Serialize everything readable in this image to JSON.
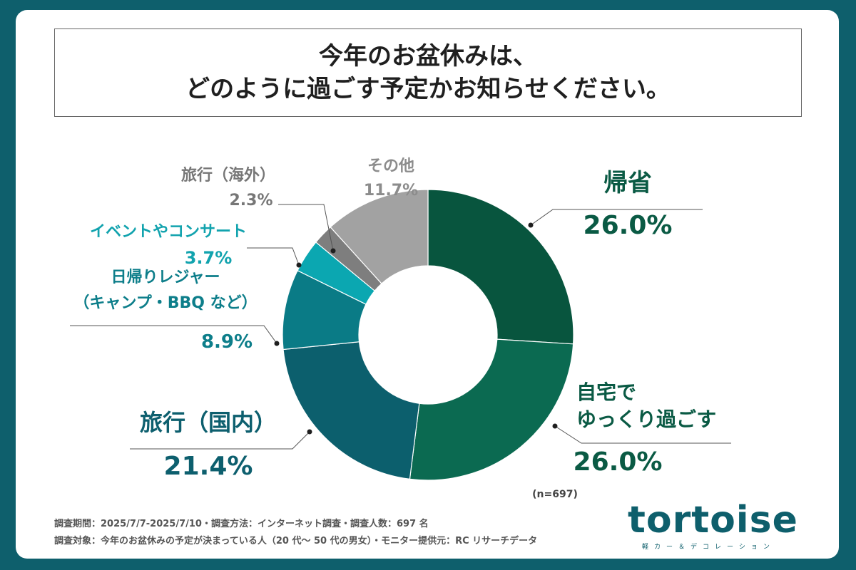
{
  "title": {
    "line1": "今年のお盆休みは、",
    "line2": "どのように過ごす予定かお知らせください。"
  },
  "chart_data": {
    "type": "pie",
    "variant": "donut",
    "title": "今年のお盆休みは、どのように過ごす予定かお知らせください。",
    "unit": "%",
    "n_label": "(n=697)",
    "slices": [
      {
        "label": [
          "帰省"
        ],
        "value": 26.0,
        "value_label": "26.0%",
        "color": "#08553e"
      },
      {
        "label": [
          "自宅で",
          "ゆっくり過ごす"
        ],
        "value": 26.0,
        "value_label": "26.0%",
        "color": "#0b6a51"
      },
      {
        "label": [
          "旅行（国内）"
        ],
        "value": 21.4,
        "value_label": "21.4%",
        "color": "#0c5f6d"
      },
      {
        "label": [
          "日帰りレジャー",
          "（キャンプ・BBQ など）"
        ],
        "value": 8.9,
        "value_label": "8.9%",
        "color": "#0a7b86"
      },
      {
        "label": [
          "イベントやコンサート"
        ],
        "value": 3.7,
        "value_label": "3.7%",
        "color": "#0ba7b1"
      },
      {
        "label": [
          "旅行（海外）"
        ],
        "value": 2.3,
        "value_label": "2.3%",
        "color": "#7e7e7e"
      },
      {
        "label": [
          "その他"
        ],
        "value": 11.7,
        "value_label": "11.7%",
        "color": "#a2a2a2"
      }
    ],
    "label_colors": {
      "帰省": "#0a5a44",
      "自宅で ゆっくり過ごす": "#0a5a44",
      "旅行（国内）": "#0d5f6e",
      "日帰りレジャー": "#0d7e8a",
      "イベントやコンサート": "#12a3ae",
      "旅行（海外）": "#777777",
      "その他": "#8c8c8c"
    }
  },
  "footnotes": {
    "line1": "調査期間：2025/7/7-2025/7/10・調査方法：インターネット調査・調査人数：697 名",
    "line2": "調査対象：今年のお盆休みの予定が決まっている人（20 代〜 50 代の男女）・モニター提供元：RC リサーチデータ"
  },
  "logo": {
    "wordmark": "tortoise",
    "tagline": "軽カー＆デコレーション"
  }
}
